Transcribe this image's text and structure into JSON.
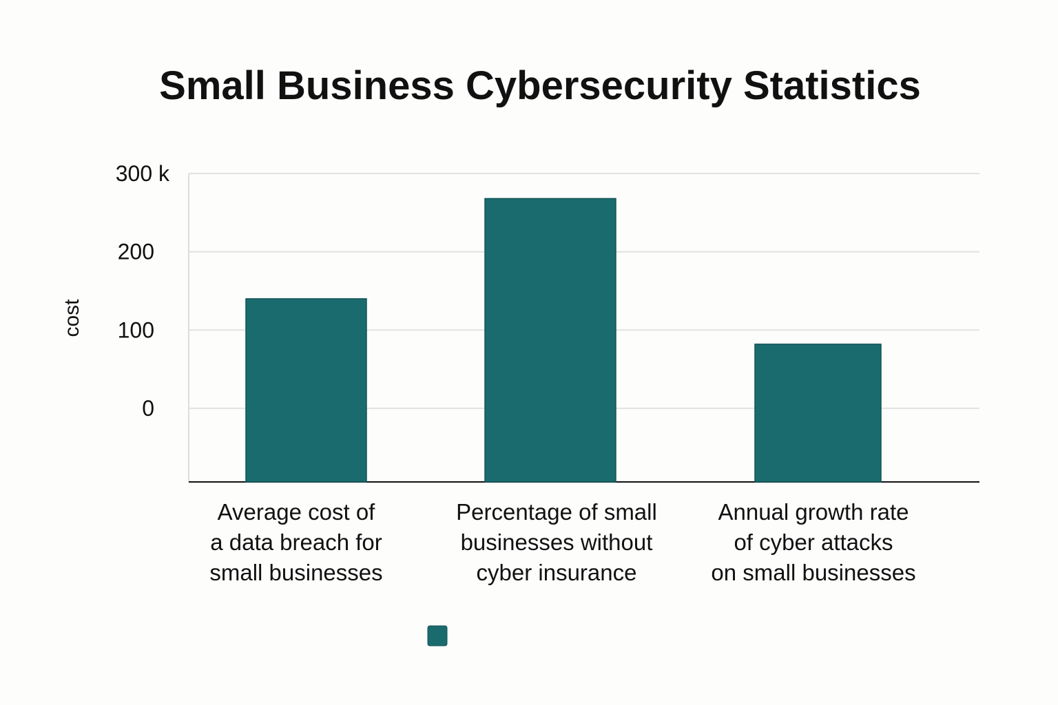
{
  "chart_data": {
    "type": "bar",
    "title": "Small Business Cybersecurity Statistics",
    "xlabel": "",
    "ylabel": "cost",
    "ylim": [
      -94,
      300
    ],
    "yticks": [
      0,
      100,
      200,
      300
    ],
    "ytick_labels": [
      "0",
      "100",
      "200",
      "300 k"
    ],
    "grid": true,
    "categories": [
      [
        "Average cost of",
        "a data breach for",
        "small businesses"
      ],
      [
        "Percentage of small",
        "businesses without",
        "cyber insurance"
      ],
      [
        "Annual growth rate",
        "of cyber attacks",
        "on small businesses"
      ]
    ],
    "values": [
      140,
      268,
      82
    ],
    "bar_color": "#1a6b6e",
    "legend": {
      "placement": "bottom",
      "entries": [
        {
          "label": "",
          "color": "#1a6b6e"
        }
      ]
    }
  }
}
